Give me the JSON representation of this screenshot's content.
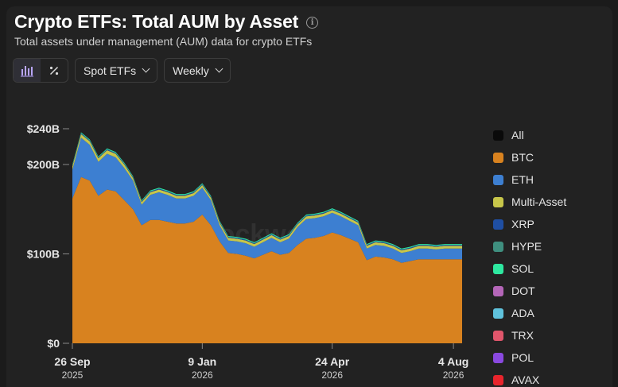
{
  "header": {
    "title": "Crypto ETFs: Total AUM by Asset",
    "subtitle": "Total assets under management (AUM) data for crypto ETFs"
  },
  "toolbar": {
    "chart_icons": [
      "bar-chart-icon",
      "percent-icon"
    ],
    "type_dropdown": "Spot ETFs",
    "interval_dropdown": "Weekly"
  },
  "watermark": "Blockworks",
  "chart_data": {
    "type": "area",
    "stacked": true,
    "title": "Crypto ETFs: Total AUM by Asset",
    "ylim": [
      0,
      240
    ],
    "y_ticks": [
      {
        "value": 0,
        "label": "$0"
      },
      {
        "value": 100,
        "label": "$100B"
      },
      {
        "value": 200,
        "label": "$200B"
      },
      {
        "value": 240,
        "label": "$240B"
      }
    ],
    "x_ticks": [
      {
        "week": 0,
        "label": "26 Sep",
        "sublabel": "2025"
      },
      {
        "week": 15,
        "label": "9 Jan",
        "sublabel": "2026"
      },
      {
        "week": 30,
        "label": "24 Apr",
        "sublabel": "2026"
      },
      {
        "week": 44,
        "label": "4 Aug",
        "sublabel": "2026"
      }
    ],
    "x": [
      0,
      1,
      2,
      3,
      4,
      5,
      6,
      7,
      8,
      9,
      10,
      11,
      12,
      13,
      14,
      15,
      16,
      17,
      18,
      19,
      20,
      21,
      22,
      23,
      24,
      25,
      26,
      27,
      28,
      29,
      30,
      31,
      32,
      33,
      34,
      35,
      36,
      37,
      38,
      39,
      40,
      41,
      42,
      43,
      44,
      45
    ],
    "series": [
      {
        "name": "BTC",
        "color": "#d8821f",
        "values": [
          162,
          186,
          182,
          165,
          172,
          170,
          160,
          150,
          132,
          138,
          138,
          136,
          134,
          134,
          136,
          144,
          132,
          114,
          101,
          100,
          98,
          95,
          99,
          103,
          99,
          101,
          110,
          117,
          118,
          120,
          124,
          121,
          117,
          113,
          93,
          97,
          96,
          94,
          90,
          92,
          94,
          94,
          94,
          94,
          94,
          94
        ]
      },
      {
        "name": "ETH",
        "color": "#3d7fd1",
        "values": [
          32,
          44,
          40,
          38,
          40,
          38,
          36,
          32,
          23,
          28,
          31,
          30,
          28,
          28,
          29,
          30,
          28,
          18,
          14,
          14,
          14,
          13,
          14,
          15,
          14,
          16,
          20,
          22,
          22,
          22,
          22,
          21,
          20,
          19,
          13,
          13,
          13,
          12,
          11,
          11,
          12,
          12,
          11,
          12,
          12,
          12
        ]
      },
      {
        "name": "Multi-Asset",
        "color": "#c7c64a",
        "values": [
          4,
          4,
          4,
          4,
          4,
          4,
          4,
          3,
          3,
          3,
          3,
          3,
          3,
          3,
          3,
          3,
          3,
          3,
          3,
          3,
          3,
          3,
          3,
          3,
          3,
          3,
          3,
          3,
          3,
          3,
          3,
          3,
          3,
          3,
          3,
          3,
          3,
          3,
          3,
          3,
          3,
          3,
          3,
          3,
          3,
          3
        ]
      },
      {
        "name": "XRP",
        "color": "#1f4fa3",
        "values": [
          1,
          1,
          1,
          1,
          1,
          1,
          1,
          1,
          1,
          1,
          1,
          1,
          1,
          1,
          1,
          1,
          1,
          1,
          1,
          1,
          1,
          1,
          1,
          1,
          1,
          1,
          1,
          1,
          1,
          1,
          1,
          1,
          1,
          1,
          1,
          1,
          1,
          1,
          1,
          1,
          1,
          1,
          1,
          1,
          1,
          1
        ]
      },
      {
        "name": "HYPE",
        "color": "#3f8f7f",
        "values": [
          0,
          0,
          0,
          0,
          0,
          0,
          0,
          0,
          0,
          0,
          0,
          0,
          0,
          0,
          0,
          0,
          0,
          0,
          0,
          0,
          0,
          0,
          0,
          0,
          0,
          0,
          0,
          0,
          0,
          0,
          0,
          0,
          0,
          0,
          0,
          0,
          0,
          0,
          0,
          0,
          0,
          0,
          0,
          0,
          0,
          0
        ]
      },
      {
        "name": "SOL",
        "color": "#2ee8a0",
        "values": [
          1,
          1,
          1,
          1,
          1,
          1,
          1,
          1,
          1,
          1,
          1,
          1,
          1,
          1,
          1,
          1,
          1,
          1,
          1,
          1,
          1,
          1,
          1,
          1,
          1,
          1,
          1,
          1,
          1,
          1,
          1,
          1,
          1,
          1,
          1,
          1,
          1,
          1,
          1,
          1,
          1,
          1,
          1,
          1,
          1,
          1
        ]
      },
      {
        "name": "DOT",
        "color": "#b466b8",
        "values": [
          0,
          0,
          0,
          0,
          0,
          0,
          0,
          0,
          0,
          0,
          0,
          0,
          0,
          0,
          0,
          0,
          0,
          0,
          0,
          0,
          0,
          0,
          0,
          0,
          0,
          0,
          0,
          0,
          0,
          0,
          0,
          0,
          0,
          0,
          0,
          0,
          0,
          0,
          0,
          0,
          0,
          0,
          0,
          0,
          0,
          0
        ]
      },
      {
        "name": "ADA",
        "color": "#5fc2dc",
        "values": [
          0,
          0,
          0,
          0,
          0,
          0,
          0,
          0,
          0,
          0,
          0,
          0,
          0,
          0,
          0,
          0,
          0,
          0,
          0,
          0,
          0,
          0,
          0,
          0,
          0,
          0,
          0,
          0,
          0,
          0,
          0,
          0,
          0,
          0,
          0,
          0,
          0,
          0,
          0,
          0,
          0,
          0,
          0,
          0,
          0,
          0
        ]
      },
      {
        "name": "TRX",
        "color": "#e0566b",
        "values": [
          0,
          0,
          0,
          0,
          0,
          0,
          0,
          0,
          0,
          0,
          0,
          0,
          0,
          0,
          0,
          0,
          0,
          0,
          0,
          0,
          0,
          0,
          0,
          0,
          0,
          0,
          0,
          0,
          0,
          0,
          0,
          0,
          0,
          0,
          0,
          0,
          0,
          0,
          0,
          0,
          0,
          0,
          0,
          0,
          0,
          0
        ]
      },
      {
        "name": "POL",
        "color": "#8a49e0",
        "values": [
          0,
          0,
          0,
          0,
          0,
          0,
          0,
          0,
          0,
          0,
          0,
          0,
          0,
          0,
          0,
          0,
          0,
          0,
          0,
          0,
          0,
          0,
          0,
          0,
          0,
          0,
          0,
          0,
          0,
          0,
          0,
          0,
          0,
          0,
          0,
          0,
          0,
          0,
          0,
          0,
          0,
          0,
          0,
          0,
          0,
          0
        ]
      },
      {
        "name": "AVAX",
        "color": "#e8242c",
        "values": [
          0,
          0,
          0,
          0,
          0,
          0,
          0,
          0,
          0,
          0,
          0,
          0,
          0,
          0,
          0,
          0,
          0,
          0,
          0,
          0,
          0,
          0,
          0,
          0,
          0,
          0,
          0,
          0,
          0,
          0,
          0,
          0,
          0,
          0,
          0,
          0,
          0,
          0,
          0,
          0,
          0,
          0,
          0,
          0,
          0,
          0
        ]
      }
    ],
    "legend": [
      {
        "name": "All",
        "color": "#0a0a0a"
      },
      {
        "name": "BTC",
        "color": "#d8821f"
      },
      {
        "name": "ETH",
        "color": "#3d7fd1"
      },
      {
        "name": "Multi-Asset",
        "color": "#c7c64a"
      },
      {
        "name": "XRP",
        "color": "#1f4fa3"
      },
      {
        "name": "HYPE",
        "color": "#3f8f7f"
      },
      {
        "name": "SOL",
        "color": "#2ee8a0"
      },
      {
        "name": "DOT",
        "color": "#b466b8"
      },
      {
        "name": "ADA",
        "color": "#5fc2dc"
      },
      {
        "name": "TRX",
        "color": "#e0566b"
      },
      {
        "name": "POL",
        "color": "#8a49e0"
      },
      {
        "name": "AVAX",
        "color": "#e8242c"
      }
    ],
    "legend_position": "right",
    "grid": false
  }
}
